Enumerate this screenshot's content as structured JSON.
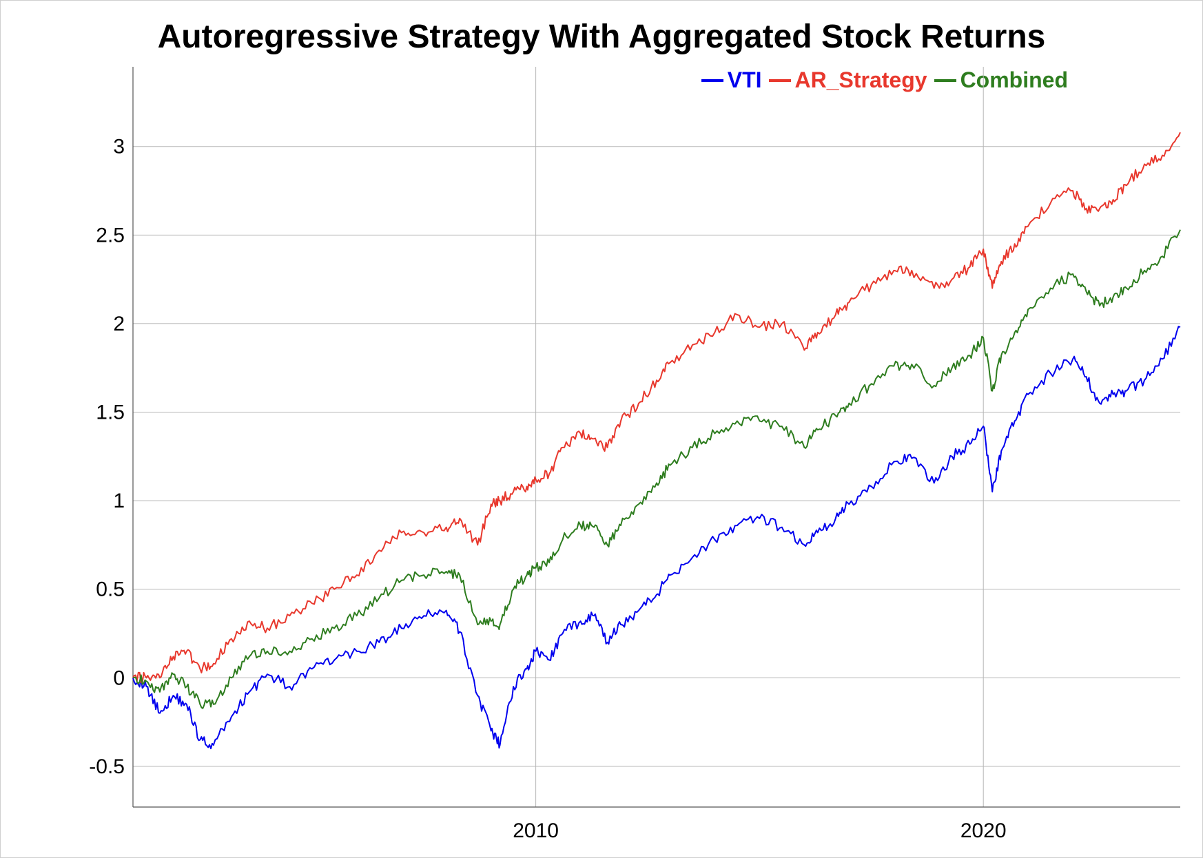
{
  "chart_data": {
    "type": "line",
    "title": "Autoregressive Strategy With Aggregated Stock Returns",
    "xlabel": "",
    "ylabel": "",
    "xlim": [
      2001.0,
      2024.4
    ],
    "ylim": [
      -0.73,
      3.45
    ],
    "grid": true,
    "legend_position": "top-right",
    "x_ticks": [
      2010,
      2020
    ],
    "x_tick_labels": [
      "2010",
      "2020"
    ],
    "y_ticks": [
      -0.5,
      0,
      0.5,
      1,
      1.5,
      2,
      2.5,
      3
    ],
    "y_tick_labels": [
      "-0.5",
      "0",
      "0.5",
      "1",
      "1.5",
      "2",
      "2.5",
      "3"
    ],
    "series": [
      {
        "name": "VTI",
        "color": "#0000ee",
        "x": [
          2001.0,
          2001.3,
          2001.6,
          2001.9,
          2002.2,
          2002.5,
          2002.8,
          2003.2,
          2003.6,
          2004.0,
          2004.5,
          2005.0,
          2005.5,
          2006.0,
          2006.5,
          2007.0,
          2007.5,
          2008.0,
          2008.3,
          2008.7,
          2009.0,
          2009.2,
          2009.5,
          2009.8,
          2010.0,
          2010.3,
          2010.6,
          2011.0,
          2011.3,
          2011.6,
          2011.9,
          2012.3,
          2012.7,
          2013.0,
          2013.5,
          2014.0,
          2014.5,
          2015.0,
          2015.5,
          2016.0,
          2016.3,
          2016.7,
          2017.0,
          2017.5,
          2018.0,
          2018.4,
          2018.9,
          2019.3,
          2019.7,
          2020.0,
          2020.2,
          2020.4,
          2020.7,
          2021.0,
          2021.5,
          2022.0,
          2022.3,
          2022.6,
          2022.9,
          2023.2,
          2023.6,
          2024.0,
          2024.4
        ],
        "values": [
          0.0,
          -0.05,
          -0.2,
          -0.1,
          -0.15,
          -0.35,
          -0.38,
          -0.22,
          -0.08,
          0.02,
          -0.05,
          0.05,
          0.1,
          0.15,
          0.2,
          0.28,
          0.35,
          0.38,
          0.26,
          -0.1,
          -0.3,
          -0.38,
          -0.05,
          0.05,
          0.15,
          0.1,
          0.25,
          0.32,
          0.35,
          0.2,
          0.3,
          0.38,
          0.47,
          0.58,
          0.68,
          0.78,
          0.86,
          0.9,
          0.85,
          0.75,
          0.82,
          0.9,
          0.98,
          1.08,
          1.22,
          1.24,
          1.1,
          1.25,
          1.32,
          1.42,
          1.05,
          1.28,
          1.45,
          1.6,
          1.72,
          1.8,
          1.7,
          1.55,
          1.6,
          1.62,
          1.68,
          1.8,
          1.98
        ]
      },
      {
        "name": "AR_Strategy",
        "color": "#e8382d",
        "x": [
          2001.0,
          2001.3,
          2001.6,
          2001.9,
          2002.2,
          2002.5,
          2002.8,
          2003.2,
          2003.6,
          2004.0,
          2004.5,
          2005.0,
          2005.5,
          2006.0,
          2006.5,
          2007.0,
          2007.5,
          2008.0,
          2008.3,
          2008.7,
          2009.0,
          2009.2,
          2009.5,
          2009.8,
          2010.0,
          2010.3,
          2010.6,
          2011.0,
          2011.3,
          2011.6,
          2011.9,
          2012.3,
          2012.7,
          2013.0,
          2013.5,
          2014.0,
          2014.5,
          2015.0,
          2015.5,
          2016.0,
          2016.3,
          2016.7,
          2017.0,
          2017.5,
          2018.0,
          2018.4,
          2018.9,
          2019.3,
          2019.7,
          2020.0,
          2020.2,
          2020.4,
          2020.7,
          2021.0,
          2021.5,
          2022.0,
          2022.3,
          2022.6,
          2022.9,
          2023.2,
          2023.6,
          2024.0,
          2024.4
        ],
        "values": [
          0.0,
          0.0,
          0.0,
          0.12,
          0.15,
          0.05,
          0.08,
          0.22,
          0.32,
          0.28,
          0.35,
          0.42,
          0.5,
          0.58,
          0.72,
          0.82,
          0.82,
          0.85,
          0.9,
          0.75,
          0.98,
          1.0,
          1.05,
          1.08,
          1.12,
          1.15,
          1.3,
          1.38,
          1.35,
          1.3,
          1.45,
          1.55,
          1.68,
          1.78,
          1.88,
          1.95,
          2.05,
          1.98,
          2.0,
          1.85,
          1.95,
          2.05,
          2.12,
          2.22,
          2.3,
          2.3,
          2.2,
          2.25,
          2.32,
          2.42,
          2.2,
          2.35,
          2.45,
          2.55,
          2.68,
          2.75,
          2.65,
          2.65,
          2.7,
          2.78,
          2.9,
          2.95,
          3.08
        ]
      },
      {
        "name": "Combined",
        "color": "#2e7d1f",
        "x": [
          2001.0,
          2001.3,
          2001.6,
          2001.9,
          2002.2,
          2002.5,
          2002.8,
          2003.2,
          2003.6,
          2004.0,
          2004.5,
          2005.0,
          2005.5,
          2006.0,
          2006.5,
          2007.0,
          2007.5,
          2008.0,
          2008.3,
          2008.7,
          2009.0,
          2009.2,
          2009.5,
          2009.8,
          2010.0,
          2010.3,
          2010.6,
          2011.0,
          2011.3,
          2011.6,
          2011.9,
          2012.3,
          2012.7,
          2013.0,
          2013.5,
          2014.0,
          2014.5,
          2015.0,
          2015.5,
          2016.0,
          2016.3,
          2016.7,
          2017.0,
          2017.5,
          2018.0,
          2018.4,
          2018.9,
          2019.3,
          2019.7,
          2020.0,
          2020.2,
          2020.4,
          2020.7,
          2021.0,
          2021.5,
          2022.0,
          2022.3,
          2022.6,
          2022.9,
          2023.2,
          2023.6,
          2024.0,
          2024.4
        ],
        "values": [
          0.0,
          -0.02,
          -0.08,
          0.02,
          -0.05,
          -0.15,
          -0.15,
          0.0,
          0.12,
          0.15,
          0.15,
          0.22,
          0.28,
          0.35,
          0.45,
          0.55,
          0.58,
          0.6,
          0.58,
          0.3,
          0.32,
          0.3,
          0.5,
          0.58,
          0.62,
          0.65,
          0.78,
          0.86,
          0.85,
          0.75,
          0.86,
          0.98,
          1.1,
          1.2,
          1.3,
          1.38,
          1.45,
          1.45,
          1.42,
          1.3,
          1.4,
          1.48,
          1.55,
          1.66,
          1.76,
          1.77,
          1.65,
          1.75,
          1.82,
          1.92,
          1.62,
          1.82,
          1.95,
          2.08,
          2.2,
          2.28,
          2.18,
          2.1,
          2.15,
          2.2,
          2.3,
          2.38,
          2.53
        ]
      }
    ]
  }
}
